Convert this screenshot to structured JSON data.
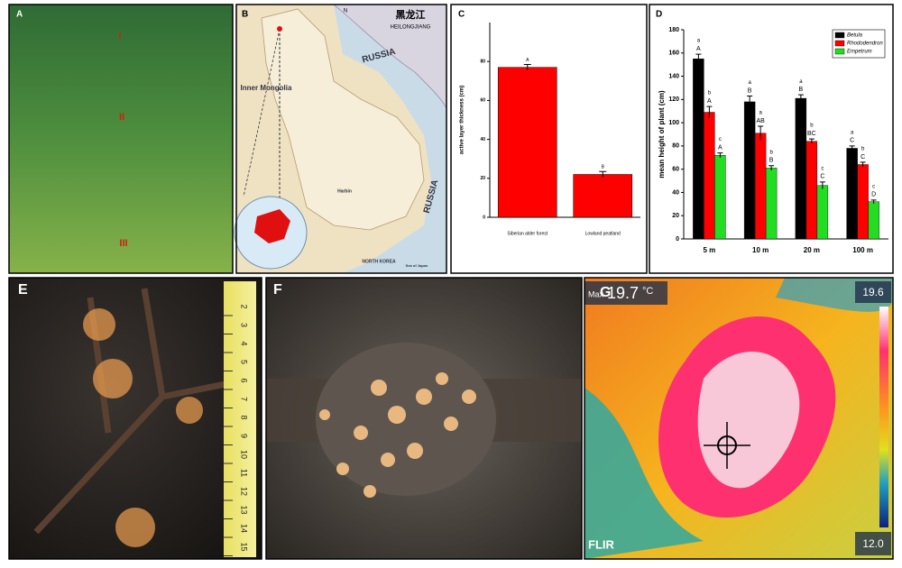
{
  "panels": {
    "labels": [
      "A",
      "B",
      "C",
      "D",
      "E",
      "F",
      "G"
    ]
  },
  "panel_a": {
    "markers": [
      "I",
      "II",
      "III"
    ]
  },
  "panel_b": {
    "title_cn": "黑龙江",
    "title_en": "HEILONGJIANG",
    "compass": "N",
    "places": [
      "RUSSIA",
      "Inner Mongolia",
      "RUSSIA",
      "NORTH KOREA",
      "Harbin",
      "Sea of Japan"
    ]
  },
  "chart_data": [
    {
      "type": "bar",
      "ylabel": "active layer thickness (cm)",
      "categories": [
        "Siberian alder forest",
        "Lowland peatland"
      ],
      "values": [
        77,
        22
      ],
      "errors": [
        1.5,
        1.5
      ],
      "annotations": [
        "A",
        "B"
      ],
      "color": "#ff0000",
      "ylim": [
        0,
        100
      ],
      "yticks": [
        0,
        20,
        40,
        60,
        80
      ]
    },
    {
      "type": "grouped_bar",
      "ylabel": "mean height of plant (cm)",
      "categories": [
        "5 m",
        "10 m",
        "20 m",
        "100 m"
      ],
      "series": [
        {
          "name": "Betula",
          "color": "#000000",
          "values": [
            155,
            118,
            121,
            78
          ],
          "errors": [
            4,
            5,
            3,
            2
          ],
          "letters": [
            [
              "a",
              "A"
            ],
            [
              "a",
              "B"
            ],
            [
              "a",
              "B"
            ],
            [
              "a",
              "C"
            ]
          ]
        },
        {
          "name": "Rhododendron",
          "color": "#ff0000",
          "values": [
            109,
            91,
            84,
            64
          ],
          "errors": [
            5,
            6,
            2,
            2
          ],
          "letters": [
            [
              "b",
              "A"
            ],
            [
              "a",
              "AB"
            ],
            [
              "b",
              "BC"
            ],
            [
              "b",
              "C"
            ]
          ]
        },
        {
          "name": "Empetrum",
          "color": "#22dd22",
          "values": [
            72,
            61,
            46,
            32
          ],
          "errors": [
            2,
            2,
            3,
            1.5
          ],
          "letters": [
            [
              "c",
              "A"
            ],
            [
              "b",
              "B"
            ],
            [
              "c",
              "C"
            ],
            [
              "c",
              "D"
            ]
          ]
        }
      ],
      "ylim": [
        0,
        180
      ],
      "yticks": [
        0,
        20,
        40,
        60,
        80,
        100,
        120,
        140,
        160,
        180
      ],
      "legend": "upper right"
    }
  ],
  "panel_e": {
    "ruler": [
      2,
      3,
      4,
      5,
      6,
      7,
      8,
      9,
      10,
      11,
      12,
      13,
      14,
      15
    ]
  },
  "panel_g": {
    "max_label": "Max",
    "max_value": "19.7",
    "unit": "°C",
    "scale_max": "19.6",
    "scale_min": "12.0",
    "brand": "FLIR"
  }
}
